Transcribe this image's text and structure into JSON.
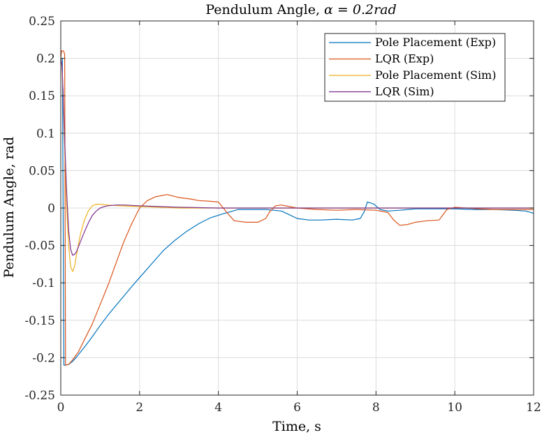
{
  "chart_data": {
    "type": "line",
    "title_text": "Pendulum Angle, ",
    "title_math": "α = 0.2rad",
    "xlabel": "Time, s",
    "ylabel": "Pendulum Angle, rad",
    "xlim": [
      0,
      12
    ],
    "ylim": [
      -0.25,
      0.25
    ],
    "x_ticks": [
      0,
      2,
      4,
      6,
      8,
      10,
      12
    ],
    "x_tick_labels": [
      "0",
      "2",
      "4",
      "6",
      "8",
      "10",
      "12"
    ],
    "y_ticks": [
      0.25,
      0.2,
      0.15,
      0.1,
      0.05,
      0,
      -0.05,
      -0.1,
      -0.15,
      -0.2,
      -0.25
    ],
    "y_tick_labels": [
      "0.25",
      "0.2",
      "0.15",
      "0.1",
      "0.05",
      "0",
      "-0.05",
      "-0.1",
      "-0.15",
      "-0.2",
      "-0.25"
    ],
    "grid": true,
    "legend_position": "top-right",
    "series": [
      {
        "name": "Pole Placement (Exp)",
        "color": "#0072BD",
        "x": [
          0,
          0.04,
          0.08,
          0.1,
          0.2,
          0.3,
          0.4,
          0.6,
          0.8,
          1.0,
          1.2,
          1.5,
          1.8,
          2.0,
          2.3,
          2.6,
          2.9,
          3.2,
          3.5,
          3.8,
          4.1,
          4.3,
          4.5,
          4.8,
          5.0,
          5.2,
          5.4,
          5.6,
          5.8,
          6.0,
          6.3,
          6.6,
          7.0,
          7.4,
          7.6,
          7.7,
          7.78,
          7.85,
          7.95,
          8.1,
          8.3,
          8.6,
          9.0,
          9.5,
          10.0,
          10.5,
          11.0,
          11.5,
          11.8,
          12.0
        ],
        "y": [
          0.2,
          0.2,
          -0.21,
          -0.21,
          -0.209,
          -0.205,
          -0.199,
          -0.186,
          -0.172,
          -0.157,
          -0.143,
          -0.124,
          -0.105,
          -0.093,
          -0.075,
          -0.057,
          -0.043,
          -0.031,
          -0.021,
          -0.013,
          -0.008,
          -0.005,
          -0.002,
          -0.002,
          -0.002,
          -0.002,
          -0.003,
          -0.004,
          -0.009,
          -0.014,
          -0.016,
          -0.016,
          -0.015,
          -0.016,
          -0.014,
          -0.005,
          0.008,
          0.007,
          0.005,
          -0.002,
          -0.004,
          -0.003,
          -0.001,
          -0.001,
          -0.001,
          -0.002,
          -0.002,
          -0.003,
          -0.004,
          -0.007
        ]
      },
      {
        "name": "LQR (Exp)",
        "color": "#D95319",
        "x": [
          0,
          0.02,
          0.06,
          0.08,
          0.1,
          0.12,
          0.2,
          0.3,
          0.45,
          0.6,
          0.8,
          1.0,
          1.2,
          1.4,
          1.6,
          1.8,
          2.0,
          2.2,
          2.4,
          2.7,
          3.0,
          3.3,
          3.5,
          3.8,
          4.0,
          4.2,
          4.4,
          4.7,
          5.0,
          5.2,
          5.3,
          5.45,
          5.6,
          5.8,
          6.0,
          6.5,
          7.0,
          7.5,
          8.0,
          8.3,
          8.45,
          8.6,
          8.8,
          9.0,
          9.3,
          9.6,
          9.8,
          10.0,
          10.3,
          10.6,
          11.0,
          11.5,
          12.0
        ],
        "y": [
          0.2,
          0.21,
          0.21,
          0.209,
          0.205,
          -0.21,
          -0.209,
          -0.203,
          -0.192,
          -0.176,
          -0.155,
          -0.129,
          -0.103,
          -0.074,
          -0.045,
          -0.021,
          0.0,
          0.01,
          0.015,
          0.018,
          0.014,
          0.012,
          0.01,
          0.009,
          0.008,
          -0.005,
          -0.017,
          -0.019,
          -0.019,
          -0.014,
          -0.005,
          0.003,
          0.004,
          0.002,
          0.0,
          -0.002,
          -0.003,
          -0.002,
          -0.003,
          -0.006,
          -0.016,
          -0.023,
          -0.022,
          -0.019,
          -0.017,
          -0.016,
          -0.002,
          0.001,
          0.0,
          -0.001,
          -0.002,
          -0.002,
          -0.002
        ]
      },
      {
        "name": "Pole Placement (Sim)",
        "color": "#EDB120",
        "x": [
          0,
          0.03,
          0.06,
          0.1,
          0.15,
          0.2,
          0.25,
          0.3,
          0.35,
          0.4,
          0.5,
          0.6,
          0.7,
          0.8,
          0.9,
          1.0,
          1.2,
          1.5,
          2.0,
          3.0,
          4.0,
          6.0,
          8.0,
          10.0,
          12.0
        ],
        "y": [
          0.2,
          0.19,
          0.15,
          0.08,
          0.0,
          -0.05,
          -0.078,
          -0.085,
          -0.078,
          -0.062,
          -0.035,
          -0.016,
          -0.004,
          0.003,
          0.005,
          0.005,
          0.004,
          0.003,
          0.002,
          0.0,
          0.0,
          0.0,
          0.0,
          0.0,
          0.0
        ]
      },
      {
        "name": "LQR (Sim)",
        "color": "#7E2F8E",
        "x": [
          0,
          0.03,
          0.06,
          0.1,
          0.15,
          0.2,
          0.25,
          0.3,
          0.35,
          0.4,
          0.5,
          0.6,
          0.7,
          0.8,
          0.9,
          1.0,
          1.1,
          1.2,
          1.4,
          1.6,
          2.0,
          2.5,
          3.0,
          4.0,
          5.0,
          6.0,
          8.0,
          10.0,
          12.0
        ],
        "y": [
          0.2,
          0.19,
          0.155,
          0.09,
          0.02,
          -0.03,
          -0.055,
          -0.063,
          -0.062,
          -0.058,
          -0.045,
          -0.032,
          -0.02,
          -0.01,
          -0.004,
          0.0,
          0.002,
          0.003,
          0.004,
          0.004,
          0.003,
          0.002,
          0.001,
          0.0,
          0.0,
          0.0,
          0.0,
          0.0,
          0.0
        ]
      }
    ]
  }
}
